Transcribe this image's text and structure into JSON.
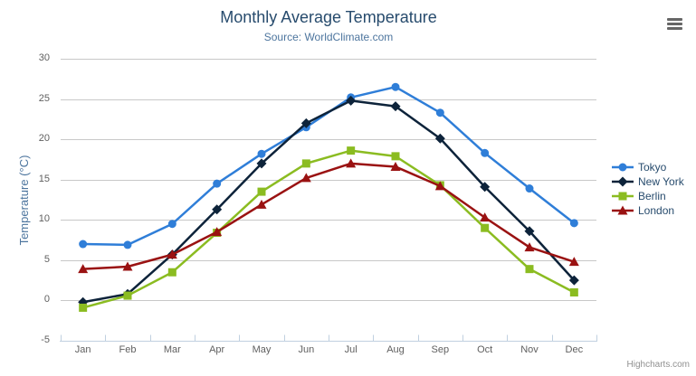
{
  "chart_data": {
    "type": "line",
    "title": "Monthly Average Temperature",
    "subtitle": "Source: WorldClimate.com",
    "categories": [
      "Jan",
      "Feb",
      "Mar",
      "Apr",
      "May",
      "Jun",
      "Jul",
      "Aug",
      "Sep",
      "Oct",
      "Nov",
      "Dec"
    ],
    "xlabel": "",
    "ylabel": "Temperature (°C)",
    "ylim": [
      -5,
      30
    ],
    "tick_interval": 5,
    "grid": true,
    "legend_position": "right",
    "series": [
      {
        "name": "Tokyo",
        "color": "#2f7ed8",
        "marker": "circle",
        "values": [
          7.0,
          6.9,
          9.5,
          14.5,
          18.2,
          21.5,
          25.2,
          26.5,
          23.3,
          18.3,
          13.9,
          9.6
        ]
      },
      {
        "name": "New York",
        "color": "#0d233a",
        "marker": "diamond",
        "values": [
          -0.2,
          0.8,
          5.7,
          11.3,
          17.0,
          22.0,
          24.8,
          24.1,
          20.1,
          14.1,
          8.6,
          2.5
        ]
      },
      {
        "name": "Berlin",
        "color": "#8bbc21",
        "marker": "square",
        "values": [
          -0.9,
          0.6,
          3.5,
          8.4,
          13.5,
          17.0,
          18.6,
          17.9,
          14.3,
          9.0,
          3.9,
          1.0
        ]
      },
      {
        "name": "London",
        "color": "#9a1212",
        "marker": "triangle",
        "values": [
          3.9,
          4.2,
          5.7,
          8.5,
          11.9,
          15.2,
          17.0,
          16.6,
          14.2,
          10.3,
          6.6,
          4.8
        ]
      }
    ],
    "credit": "Highcharts.com",
    "colors": {
      "title": "#274b6d",
      "subtitle": "#4d759e",
      "axis_labels": "#606060",
      "axis_line": "#c0d0e0",
      "gridline": "#c8c8c8",
      "legend_text": "#274b6d",
      "credit_text": "#909090"
    }
  }
}
